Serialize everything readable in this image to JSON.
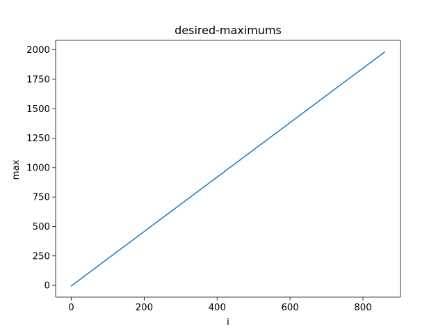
{
  "chart_data": {
    "type": "line",
    "title": "desired-maximums",
    "xlabel": "i",
    "ylabel": "max",
    "xlim": [
      -43,
      903
    ],
    "ylim": [
      -100,
      2080
    ],
    "grid": false,
    "xticks": [
      0,
      200,
      400,
      600,
      800
    ],
    "yticks": [
      0,
      250,
      500,
      750,
      1000,
      1250,
      1500,
      1750,
      2000
    ],
    "series": [
      {
        "name": "",
        "color": "#1f77b4",
        "x": [
          0,
          859
        ],
        "y": [
          -5,
          1980
        ]
      }
    ]
  }
}
